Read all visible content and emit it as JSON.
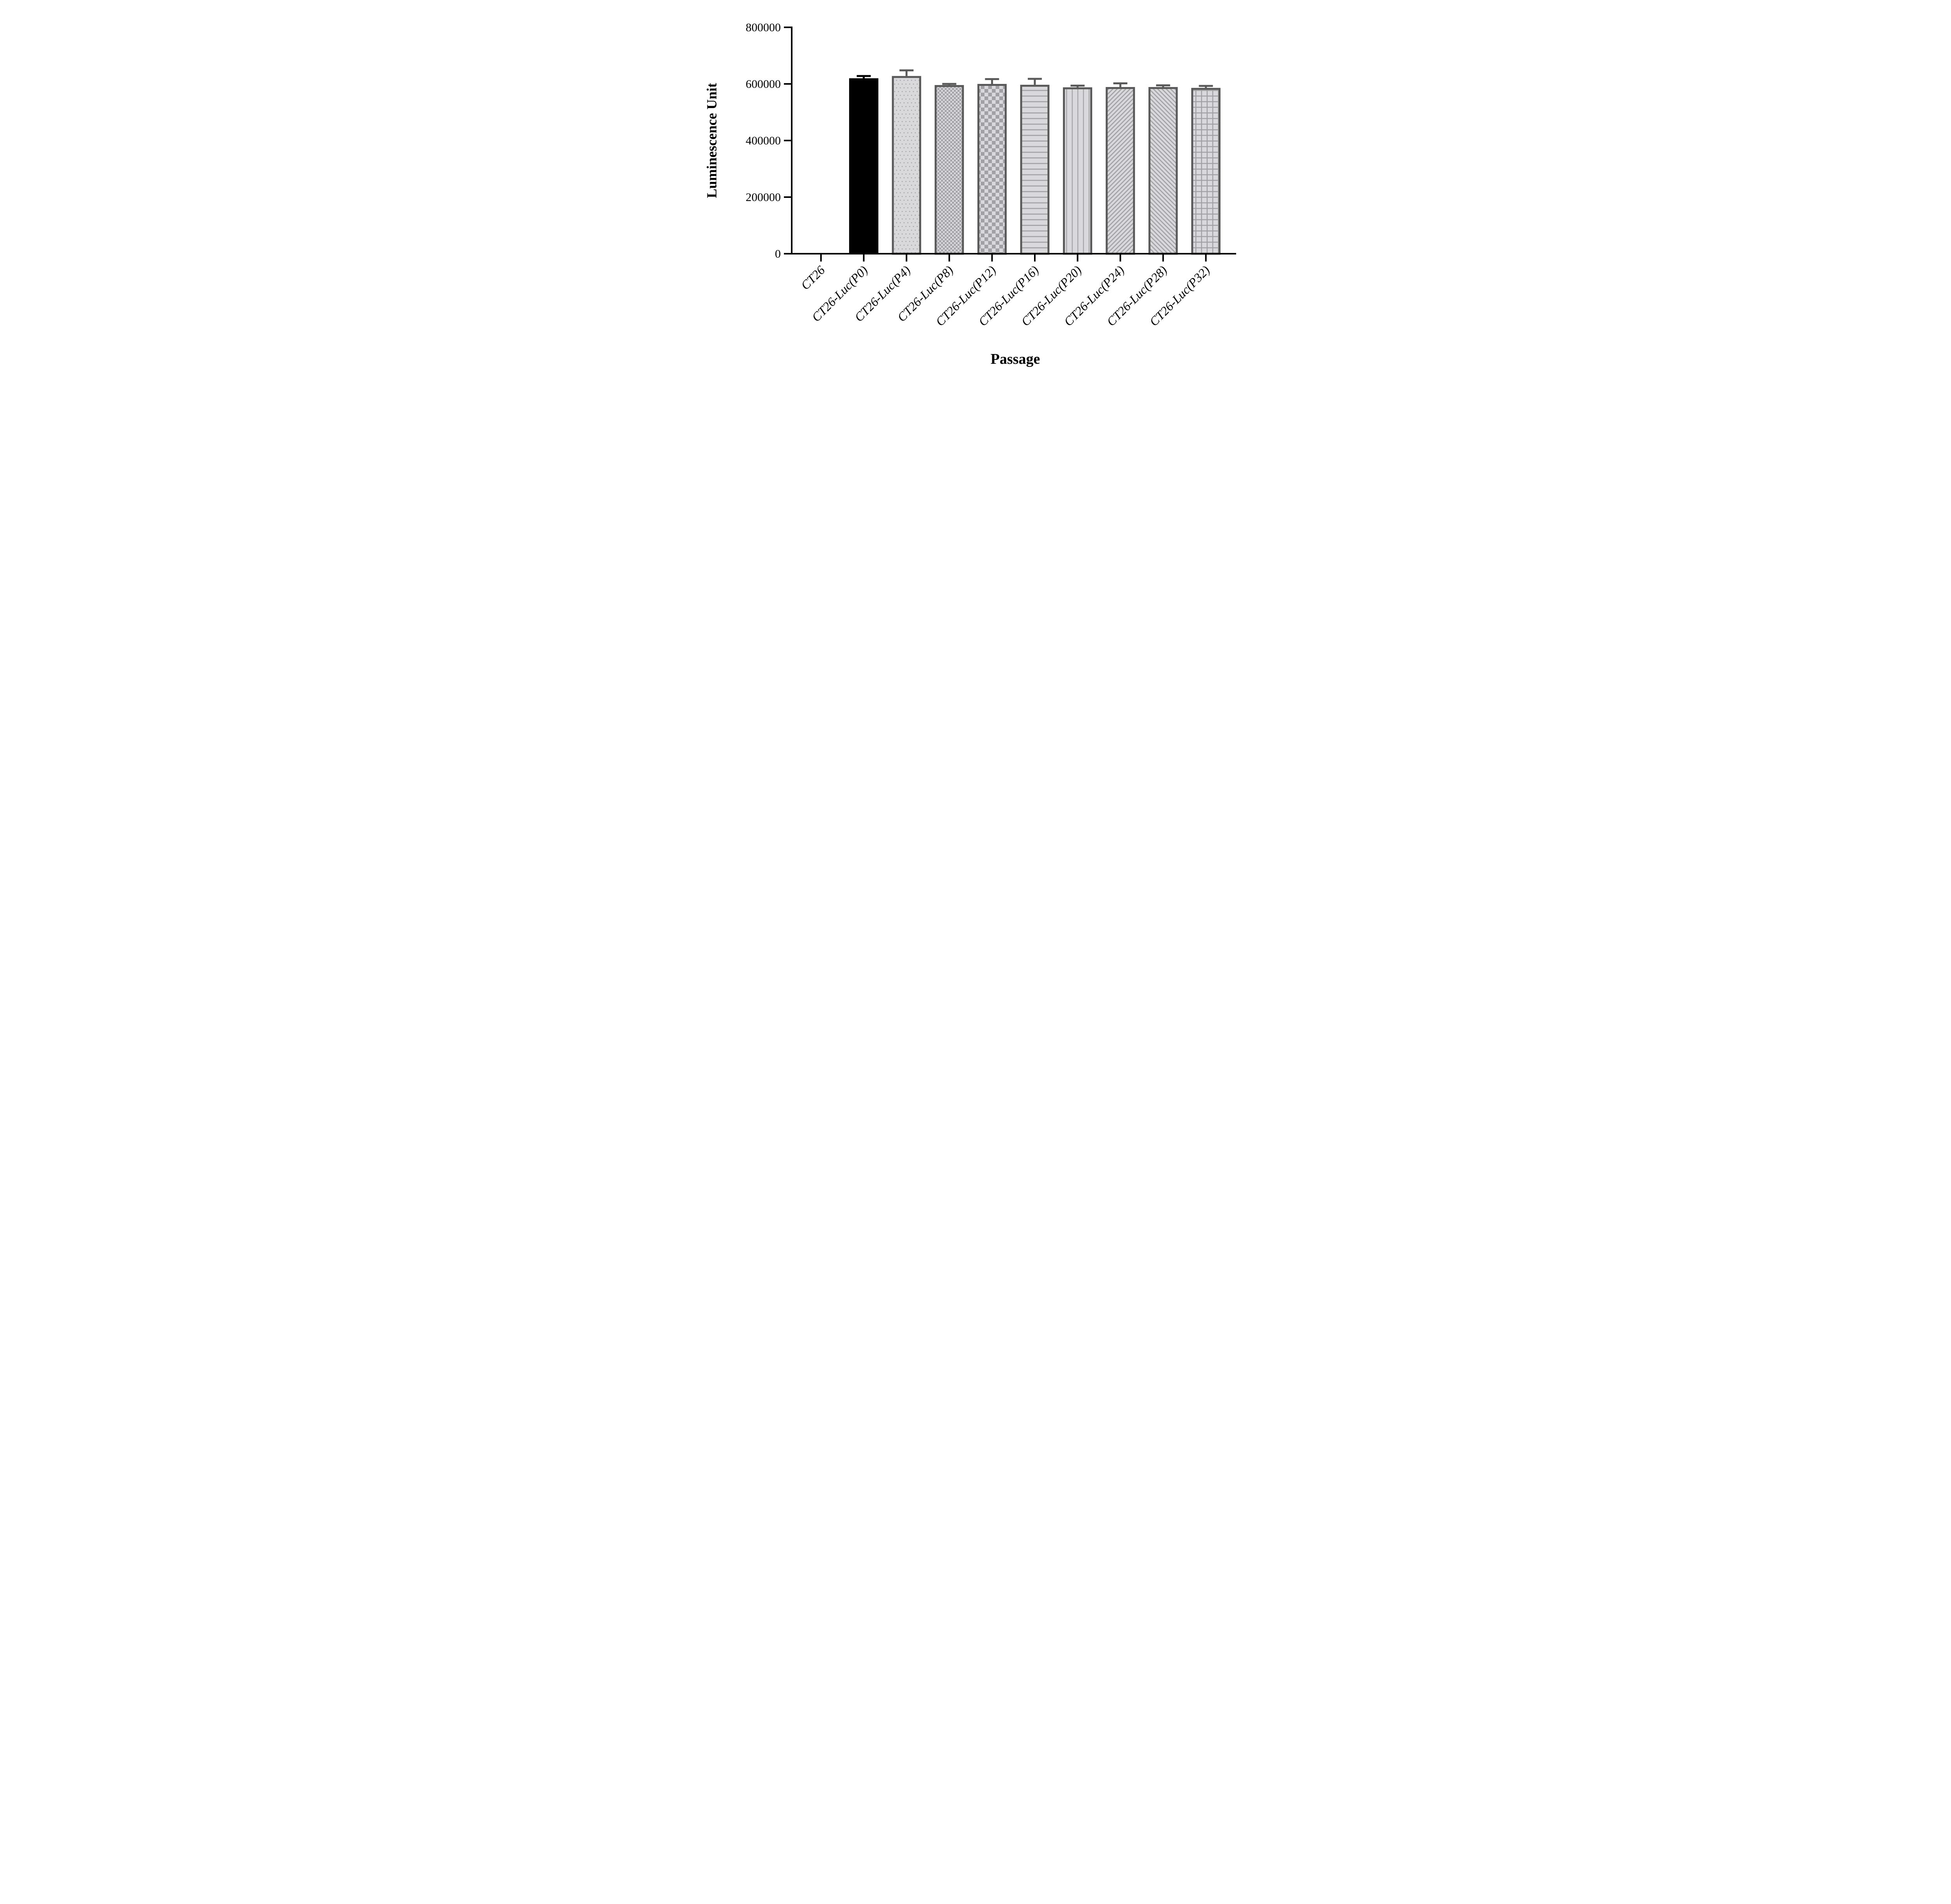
{
  "chart_data": {
    "type": "bar",
    "title": "",
    "xlabel": "Passage",
    "ylabel": "Luminescence Unit",
    "categories": [
      "CT26",
      "CT26-Luc(P0)",
      "CT26-Luc(P4)",
      "CT26-Luc(P8)",
      "CT26-Luc(P12)",
      "CT26-Luc(P16)",
      "CT26-Luc(P20)",
      "CT26-Luc(P24)",
      "CT26-Luc(P28)",
      "CT26-Luc(P32)"
    ],
    "values": [
      0,
      620000,
      628000,
      596000,
      600000,
      597000,
      588000,
      589000,
      589000,
      586000
    ],
    "errors_up": [
      0,
      8000,
      20000,
      4000,
      17000,
      21000,
      6000,
      13000,
      6000,
      7000
    ],
    "error_bars": "SD shown upward only, T-cap",
    "bar_patterns": [
      "none",
      "solid-black",
      "dots",
      "checker-fine",
      "checker-coarse",
      "horizontal-lines",
      "vertical-lines",
      "diagonal-up-lines",
      "diagonal-down-lines",
      "grid"
    ],
    "y_ticks": [
      0,
      200000,
      400000,
      600000,
      800000
    ],
    "y_tick_labels": [
      "0",
      "200000",
      "400000",
      "600000",
      "800000"
    ],
    "ylim": [
      0,
      800000
    ],
    "grid": "off",
    "legend": "none",
    "x_tick_label_rotation_deg": -45,
    "colors": {
      "background": "#ffffff",
      "axis": "#000000",
      "text": "#000000",
      "black_bar": "#000000",
      "bar_fill": "#d9d9db",
      "pattern": "#a0a0a5",
      "bar_border": "#595959"
    }
  }
}
